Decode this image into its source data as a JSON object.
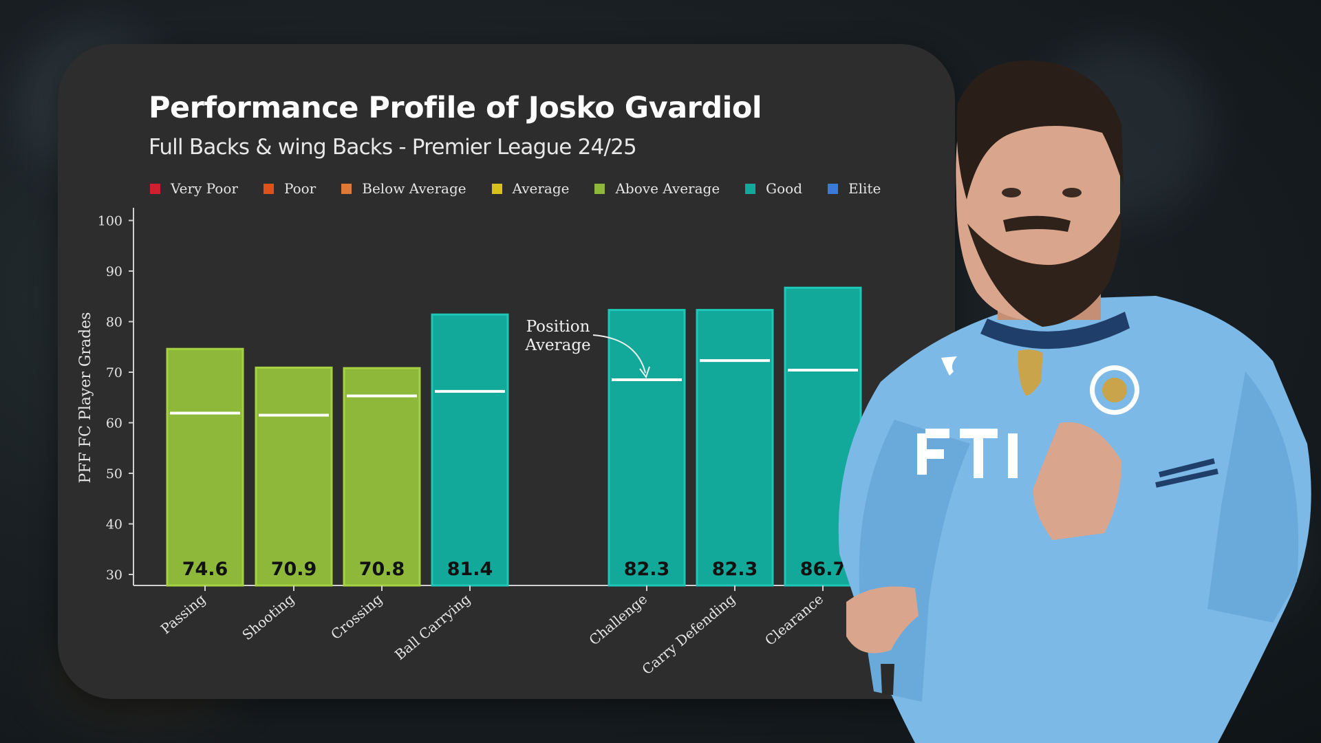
{
  "chart_data": {
    "type": "bar",
    "title": "Performance Profile of Josko Gvardiol",
    "subtitle": "Full Backs & wing Backs - Premier League 24/25",
    "ylabel": "PFF FC Player Grades",
    "ylim": [
      30,
      100
    ],
    "yticks": [
      30,
      40,
      50,
      60,
      70,
      80,
      90,
      100
    ],
    "grid": false,
    "legend_position": "top",
    "legend": [
      {
        "label": "Very Poor",
        "color": "#d0202f"
      },
      {
        "label": "Poor",
        "color": "#e0521a"
      },
      {
        "label": "Below Average",
        "color": "#e07836"
      },
      {
        "label": "Average",
        "color": "#d6c21a"
      },
      {
        "label": "Above Average",
        "color": "#8db83a"
      },
      {
        "label": "Good",
        "color": "#12a89a"
      },
      {
        "label": "Elite",
        "color": "#3a7ad8"
      }
    ],
    "categories": [
      "Passing",
      "Shooting",
      "Crossing",
      "Ball Carrying",
      "Challenge",
      "Carry Defending",
      "Clearance"
    ],
    "values": [
      74.6,
      70.9,
      70.8,
      81.4,
      82.3,
      82.3,
      86.7
    ],
    "value_labels": [
      "74.6",
      "70.9",
      "70.8",
      "81.4",
      "82.3",
      "82.3",
      "86.7"
    ],
    "grades": [
      "Above Average",
      "Above Average",
      "Above Average",
      "Good",
      "Good",
      "Good",
      "Good"
    ],
    "position_average": [
      61.9,
      61.5,
      65.3,
      66.2,
      68.5,
      72.3,
      70.4
    ],
    "annotation": "Position\nAverage"
  }
}
